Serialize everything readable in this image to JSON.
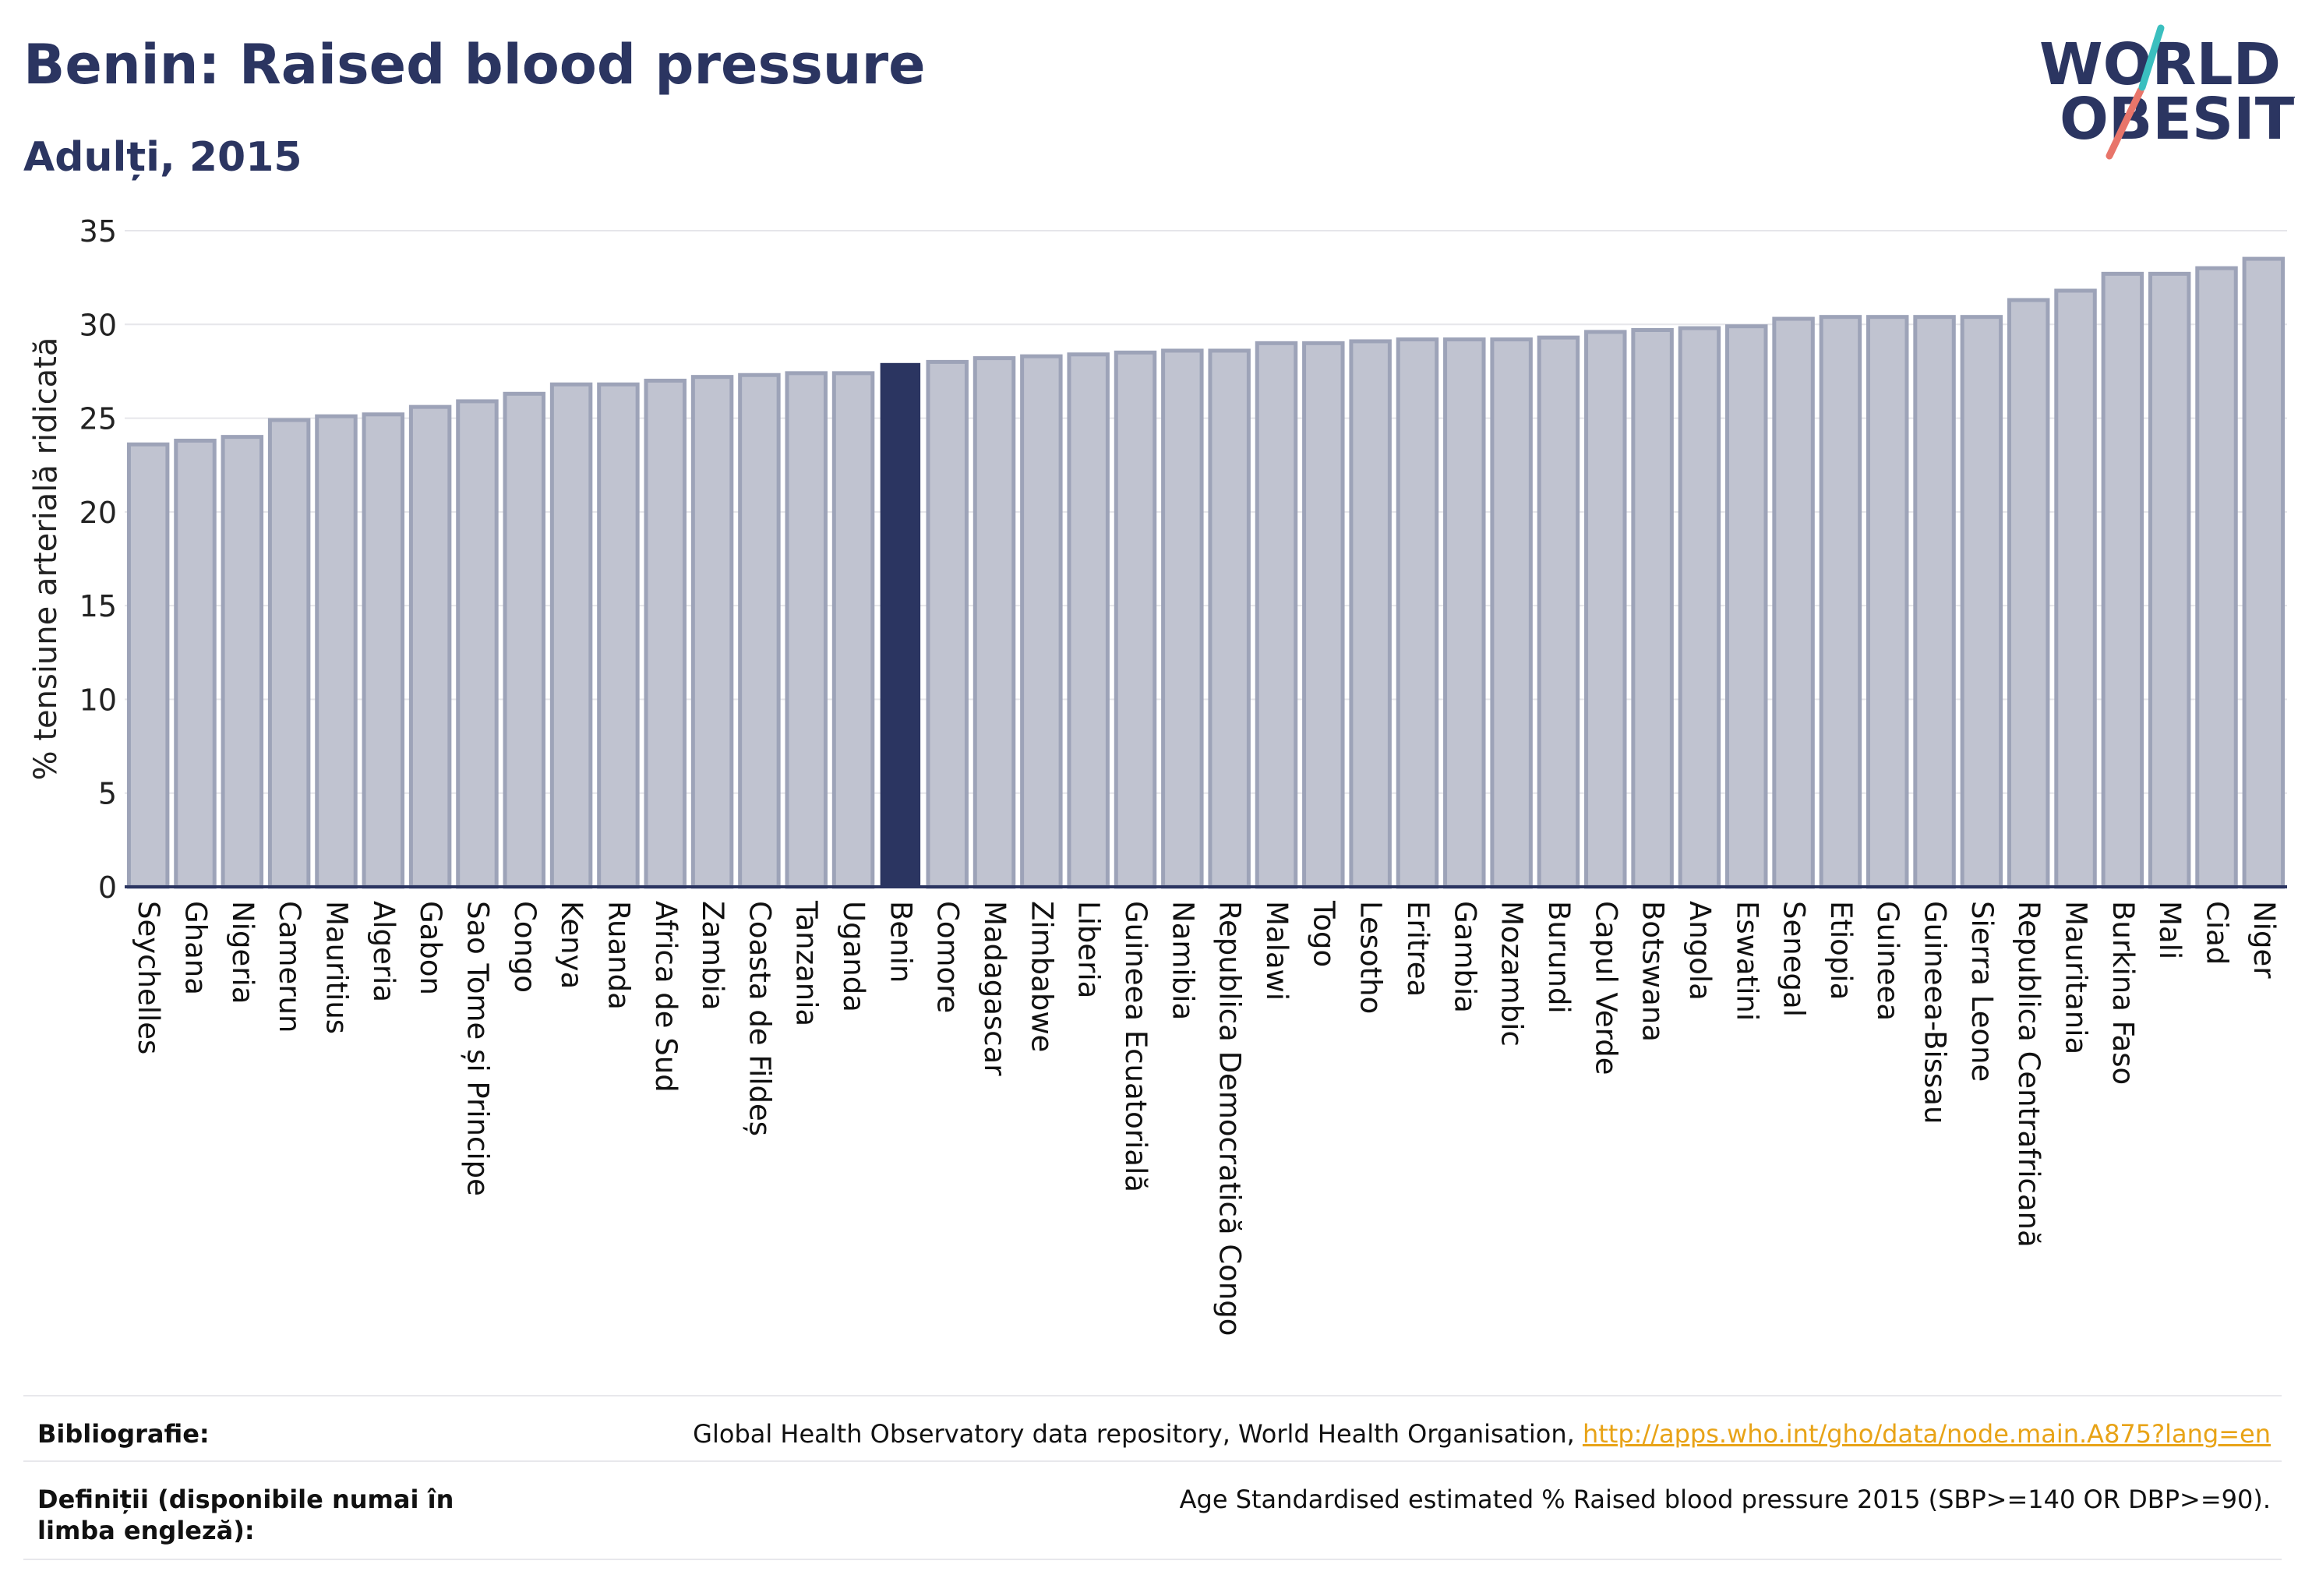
{
  "header": {
    "title": "Benin: Raised blood pressure",
    "subtitle": "Adulți, 2015"
  },
  "logo": {
    "line1": "WORLD",
    "line2": "OBESITY"
  },
  "chart_data": {
    "type": "bar",
    "ylabel": "% tensiune arterială ridicată",
    "xlabel": "",
    "ylim": [
      0,
      35
    ],
    "yticks": [
      0,
      5,
      10,
      15,
      20,
      25,
      30,
      35
    ],
    "grid": true,
    "highlight": "Benin",
    "colors": {
      "bar": "#c0c3d0",
      "bar_edge": "#9da3b8",
      "highlight": "#2b3561",
      "axis": "#2b3561",
      "grid": "#e6e6ea"
    },
    "categories": [
      "Seychelles",
      "Ghana",
      "Nigeria",
      "Camerun",
      "Mauritius",
      "Algeria",
      "Gabon",
      "Sao Tome și Principe",
      "Congo",
      "Kenya",
      "Ruanda",
      "Africa de Sud",
      "Zambia",
      "Coasta de Fildeș",
      "Tanzania",
      "Uganda",
      "Benin",
      "Comore",
      "Madagascar",
      "Zimbabwe",
      "Liberia",
      "Guineea Ecuatorială",
      "Namibia",
      "Republica Democratică Congo",
      "Malawi",
      "Togo",
      "Lesotho",
      "Eritrea",
      "Gambia",
      "Mozambic",
      "Burundi",
      "Capul Verde",
      "Botswana",
      "Angola",
      "Eswatini",
      "Senegal",
      "Etiopia",
      "Guineea",
      "Guineea-Bissau",
      "Sierra Leone",
      "Republica Centrafricană",
      "Mauritania",
      "Burkina Faso",
      "Mali",
      "Ciad",
      "Niger"
    ],
    "values": [
      23.6,
      23.8,
      24.0,
      24.9,
      25.1,
      25.2,
      25.6,
      25.9,
      26.3,
      26.8,
      26.8,
      27.0,
      27.2,
      27.3,
      27.4,
      27.4,
      27.9,
      28.0,
      28.2,
      28.3,
      28.4,
      28.5,
      28.6,
      28.6,
      29.0,
      29.0,
      29.1,
      29.2,
      29.2,
      29.2,
      29.3,
      29.6,
      29.7,
      29.8,
      29.9,
      30.3,
      30.4,
      30.4,
      30.4,
      30.4,
      31.3,
      31.8,
      32.7,
      32.7,
      33.0,
      33.5
    ]
  },
  "footer": {
    "bibliography_label": "Bibliografie:",
    "bibliography_text": "Global Health Observatory data repository, World Health Organisation, ",
    "bibliography_link": "http://apps.who.int/gho/data/node.main.A875?lang=en",
    "definitions_label": "Definiții (disponibile numai în limba engleză):",
    "definitions_text": "Age Standardised estimated % Raised blood pressure 2015 (SBP>=140 OR DBP>=90)."
  }
}
